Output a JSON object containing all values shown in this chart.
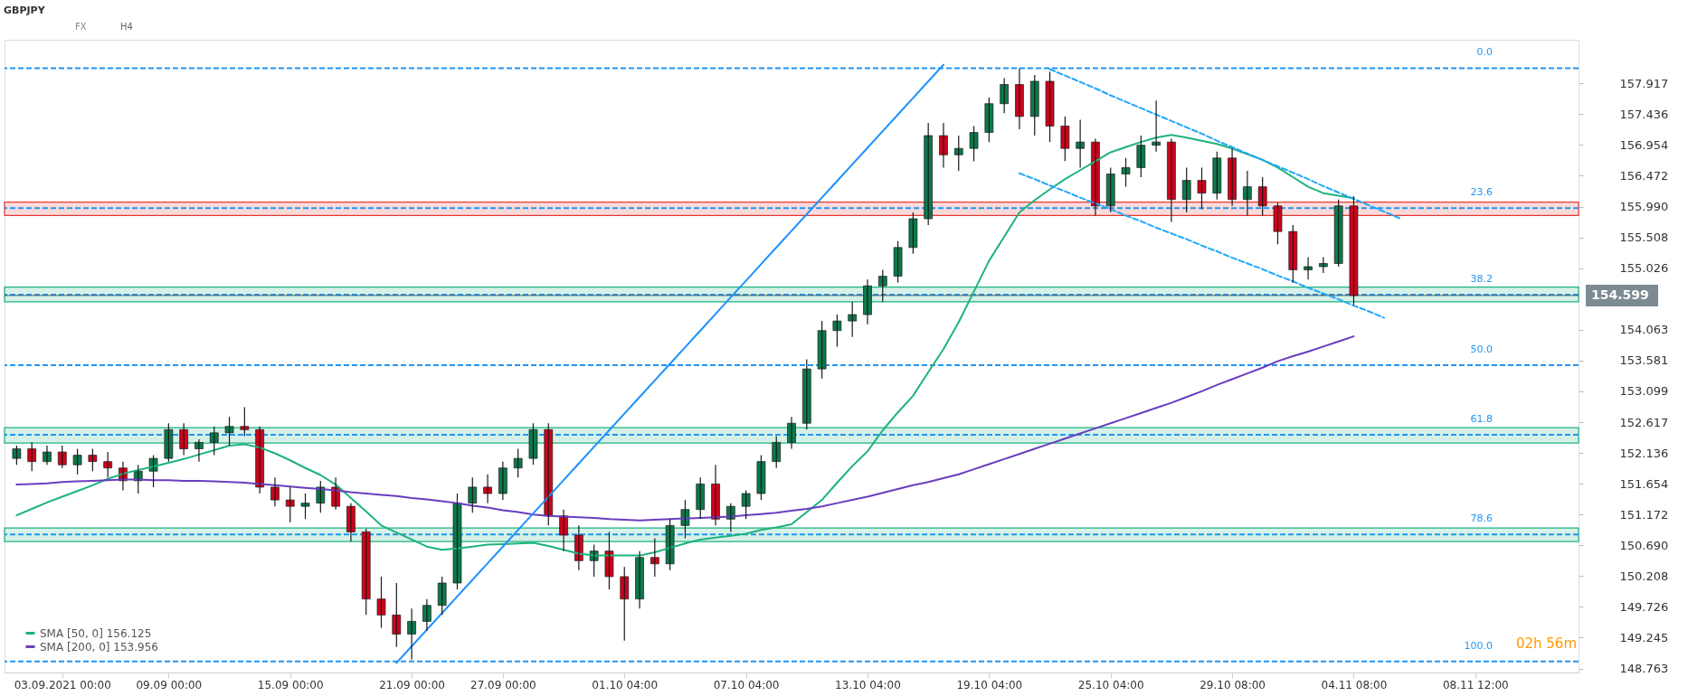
{
  "chart_data": {
    "type": "candlestick",
    "title": "GBPJPY",
    "annotations": [
      "FX",
      "H4",
      "02h 56m",
      {
        "text": "0.0",
        "y": 158.155
      },
      {
        "text": "23.6",
        "y": 155.965
      },
      {
        "text": "38.2",
        "y": 154.61
      },
      {
        "text": "50.0",
        "y": 153.51
      },
      {
        "text": "61.8",
        "y": 152.42
      },
      {
        "text": "78.6",
        "y": 150.86
      },
      {
        "text": "100.0",
        "y": 148.874
      }
    ],
    "categories": [
      null,
      null,
      null,
      "03.09.2021 00:00",
      null,
      null,
      null,
      null,
      null,
      null,
      "09.09 00:00",
      null,
      null,
      null,
      null,
      null,
      null,
      null,
      "15.09 00:00",
      null,
      null,
      null,
      null,
      null,
      null,
      null,
      "21.09 00:00",
      null,
      null,
      null,
      null,
      null,
      "27.09 00:00",
      null,
      null,
      null,
      null,
      null,
      null,
      null,
      "01.10 04:00",
      null,
      null,
      null,
      null,
      null,
      null,
      null,
      "07.10 04:00",
      null,
      null,
      null,
      null,
      null,
      null,
      null,
      "13.10 04:00",
      null,
      null,
      null,
      null,
      null,
      null,
      null,
      "19.10 04:00",
      null,
      null,
      null,
      null,
      null,
      null,
      null,
      "25.10 04:00",
      null,
      null,
      null,
      null,
      null,
      null,
      null,
      "29.10 08:00",
      null,
      null,
      null,
      null,
      null,
      null,
      null,
      "04.11 08:00",
      null,
      null,
      null,
      null,
      null,
      null,
      null,
      "08.11 12:00",
      null,
      null,
      null,
      null,
      null,
      null
    ],
    "ohlc": [
      [
        152.05,
        152.25,
        151.95,
        152.2
      ],
      [
        152.2,
        152.3,
        151.85,
        152.0
      ],
      [
        152.0,
        152.25,
        151.95,
        152.15
      ],
      [
        152.15,
        152.25,
        151.9,
        151.95
      ],
      [
        151.95,
        152.2,
        151.8,
        152.1
      ],
      [
        152.1,
        152.2,
        151.85,
        152.0
      ],
      [
        152.0,
        152.15,
        151.75,
        151.9
      ],
      [
        151.9,
        152.0,
        151.55,
        151.7
      ],
      [
        151.7,
        151.95,
        151.5,
        151.85
      ],
      [
        151.85,
        152.1,
        151.6,
        152.05
      ],
      [
        152.05,
        152.6,
        152.0,
        152.5
      ],
      [
        152.5,
        152.6,
        152.1,
        152.2
      ],
      [
        152.2,
        152.35,
        152.0,
        152.3
      ],
      [
        152.3,
        152.55,
        152.1,
        152.45
      ],
      [
        152.45,
        152.7,
        152.25,
        152.55
      ],
      [
        152.55,
        152.85,
        152.4,
        152.5
      ],
      [
        152.5,
        152.55,
        151.5,
        151.6
      ],
      [
        151.6,
        151.75,
        151.3,
        151.4
      ],
      [
        151.4,
        151.6,
        151.05,
        151.3
      ],
      [
        151.3,
        151.5,
        151.1,
        151.35
      ],
      [
        151.35,
        151.7,
        151.2,
        151.6
      ],
      [
        151.6,
        151.75,
        151.25,
        151.3
      ],
      [
        151.3,
        151.35,
        150.75,
        150.9
      ],
      [
        150.9,
        150.95,
        149.6,
        149.85
      ],
      [
        149.85,
        150.2,
        149.4,
        149.6
      ],
      [
        149.6,
        150.1,
        149.1,
        149.3
      ],
      [
        149.3,
        149.7,
        148.9,
        149.5
      ],
      [
        149.5,
        149.85,
        149.35,
        149.75
      ],
      [
        149.75,
        150.2,
        149.6,
        150.1
      ],
      [
        150.1,
        151.5,
        150.0,
        151.35
      ],
      [
        151.35,
        151.75,
        151.2,
        151.6
      ],
      [
        151.6,
        151.8,
        151.35,
        151.5
      ],
      [
        151.5,
        152.0,
        151.4,
        151.9
      ],
      [
        151.9,
        152.2,
        151.75,
        152.05
      ],
      [
        152.05,
        152.6,
        151.95,
        152.5
      ],
      [
        152.5,
        152.6,
        151.0,
        151.15
      ],
      [
        151.15,
        151.25,
        150.6,
        150.85
      ],
      [
        150.85,
        151.0,
        150.3,
        150.45
      ],
      [
        150.45,
        150.7,
        150.2,
        150.6
      ],
      [
        150.6,
        150.9,
        150.0,
        150.2
      ],
      [
        150.2,
        150.35,
        149.2,
        149.85
      ],
      [
        149.85,
        150.6,
        149.7,
        150.5
      ],
      [
        150.5,
        150.8,
        150.2,
        150.4
      ],
      [
        150.4,
        151.1,
        150.3,
        151.0
      ],
      [
        151.0,
        151.4,
        150.8,
        151.25
      ],
      [
        151.25,
        151.75,
        151.1,
        151.65
      ],
      [
        151.65,
        151.95,
        151.0,
        151.1
      ],
      [
        151.1,
        151.35,
        150.9,
        151.3
      ],
      [
        151.3,
        151.55,
        151.1,
        151.5
      ],
      [
        151.5,
        152.1,
        151.4,
        152.0
      ],
      [
        152.0,
        152.4,
        151.9,
        152.3
      ],
      [
        152.3,
        152.7,
        152.2,
        152.6
      ],
      [
        152.6,
        153.6,
        152.5,
        153.45
      ],
      [
        153.45,
        154.2,
        153.3,
        154.05
      ],
      [
        154.05,
        154.3,
        153.8,
        154.2
      ],
      [
        154.2,
        154.5,
        153.95,
        154.3
      ],
      [
        154.3,
        154.85,
        154.15,
        154.75
      ],
      [
        154.75,
        155.0,
        154.5,
        154.9
      ],
      [
        154.9,
        155.45,
        154.8,
        155.35
      ],
      [
        155.35,
        155.9,
        155.25,
        155.8
      ],
      [
        155.8,
        157.3,
        155.7,
        157.1
      ],
      [
        157.1,
        157.3,
        156.6,
        156.8
      ],
      [
        156.8,
        157.1,
        156.55,
        156.9
      ],
      [
        156.9,
        157.25,
        156.7,
        157.15
      ],
      [
        157.15,
        157.7,
        157.0,
        157.6
      ],
      [
        157.6,
        158.0,
        157.45,
        157.9
      ],
      [
        157.9,
        158.15,
        157.2,
        157.4
      ],
      [
        157.4,
        158.05,
        157.1,
        157.95
      ],
      [
        157.95,
        158.1,
        157.0,
        157.25
      ],
      [
        157.25,
        157.4,
        156.7,
        156.9
      ],
      [
        156.9,
        157.35,
        156.6,
        157.0
      ],
      [
        157.0,
        157.05,
        155.85,
        156.0
      ],
      [
        156.0,
        156.6,
        155.9,
        156.5
      ],
      [
        156.5,
        156.75,
        156.3,
        156.6
      ],
      [
        156.6,
        157.1,
        156.45,
        156.95
      ],
      [
        156.95,
        157.65,
        156.85,
        157.0
      ],
      [
        157.0,
        157.05,
        155.75,
        156.1
      ],
      [
        156.1,
        156.6,
        155.9,
        156.4
      ],
      [
        156.4,
        156.6,
        155.95,
        156.2
      ],
      [
        156.2,
        156.85,
        156.1,
        156.75
      ],
      [
        156.75,
        156.9,
        156.0,
        156.1
      ],
      [
        156.1,
        156.55,
        155.85,
        156.3
      ],
      [
        156.3,
        156.45,
        155.85,
        156.0
      ],
      [
        156.0,
        156.05,
        155.4,
        155.6
      ],
      [
        155.6,
        155.7,
        154.8,
        155.0
      ],
      [
        155.0,
        155.2,
        154.85,
        155.05
      ],
      [
        155.05,
        155.2,
        154.95,
        155.1
      ],
      [
        155.1,
        156.1,
        155.05,
        156.0
      ],
      [
        156.0,
        156.15,
        154.45,
        154.599
      ],
      null,
      null,
      null,
      null,
      null,
      null,
      null,
      null,
      null,
      null,
      null,
      null,
      null,
      null
    ],
    "series": [
      {
        "name": "SMA [50, 0] 156.125",
        "type": "line",
        "color": "#1db37c",
        "line_style": "solid",
        "values": [
          151.16,
          151.26,
          151.36,
          151.45,
          151.54,
          151.63,
          151.73,
          151.81,
          151.87,
          151.92,
          151.98,
          152.04,
          152.11,
          152.18,
          152.25,
          152.27,
          152.22,
          152.13,
          152.02,
          151.9,
          151.79,
          151.64,
          151.43,
          151.22,
          151.0,
          150.89,
          150.78,
          150.67,
          150.62,
          150.64,
          150.67,
          150.7,
          150.71,
          150.72,
          150.73,
          150.68,
          150.62,
          150.56,
          150.53,
          150.53,
          150.53,
          150.53,
          150.58,
          150.65,
          150.72,
          150.78,
          150.81,
          150.84,
          150.87,
          150.93,
          150.97,
          151.02,
          151.21,
          151.4,
          151.67,
          151.93,
          152.16,
          152.49,
          152.77,
          153.03,
          153.4,
          153.76,
          154.18,
          154.66,
          155.14,
          155.52,
          155.9,
          156.09,
          156.26,
          156.42,
          156.56,
          156.7,
          156.84,
          156.92,
          157.0,
          157.07,
          157.11,
          157.07,
          157.02,
          156.97,
          156.9,
          156.81,
          156.72,
          156.6,
          156.45,
          156.3,
          156.2,
          156.16,
          156.12,
          null,
          null,
          null,
          null,
          null,
          null,
          null,
          null,
          null,
          null,
          null,
          null,
          null,
          null
        ]
      },
      {
        "name": "SMA [200, 0] 153.956",
        "type": "line",
        "color": "#6a3dbf",
        "line_style": "solid",
        "values": [
          151.64,
          151.65,
          151.66,
          151.68,
          151.69,
          151.7,
          151.71,
          151.72,
          151.72,
          151.71,
          151.71,
          151.7,
          151.7,
          151.69,
          151.68,
          151.67,
          151.65,
          151.63,
          151.61,
          151.59,
          151.57,
          151.55,
          151.52,
          151.5,
          151.48,
          151.46,
          151.43,
          151.41,
          151.38,
          151.35,
          151.31,
          151.28,
          151.24,
          151.21,
          151.17,
          151.15,
          151.14,
          151.13,
          151.12,
          151.1,
          151.09,
          151.08,
          151.09,
          151.1,
          151.11,
          151.12,
          151.13,
          151.14,
          151.16,
          151.18,
          151.2,
          151.23,
          151.26,
          151.3,
          151.35,
          151.4,
          151.45,
          151.51,
          151.57,
          151.63,
          151.68,
          151.74,
          151.8,
          151.88,
          151.96,
          152.04,
          152.12,
          152.2,
          152.28,
          152.36,
          152.44,
          152.52,
          152.6,
          152.68,
          152.76,
          152.84,
          152.92,
          153.01,
          153.1,
          153.2,
          153.29,
          153.38,
          153.47,
          153.57,
          153.65,
          153.72,
          153.8,
          153.88,
          153.96,
          null,
          null,
          null,
          null,
          null,
          null,
          null,
          null,
          null,
          null,
          null,
          null,
          null,
          null
        ]
      },
      {
        "type": "line",
        "color": "#1e90ff",
        "line_style": "solid",
        "values": [
          null,
          null,
          null,
          null,
          null,
          null,
          null,
          null,
          null,
          null,
          null,
          null,
          null,
          null,
          null,
          null,
          null,
          null,
          null,
          null,
          null,
          null,
          null,
          null,
          null,
          148.85,
          149.11,
          149.37,
          149.63,
          149.89,
          150.15,
          150.41,
          150.67,
          150.93,
          151.19,
          151.45,
          151.71,
          151.97,
          152.23,
          152.49,
          152.75,
          153.01,
          153.27,
          153.53,
          153.79,
          154.05,
          154.31,
          154.57,
          154.83,
          155.09,
          155.35,
          155.61,
          155.87,
          156.13,
          156.39,
          156.65,
          156.91,
          157.17,
          157.43,
          157.69,
          157.95,
          158.21,
          null,
          null,
          null,
          null,
          null,
          null,
          null,
          null,
          null,
          null,
          null,
          null,
          null,
          null,
          null,
          null,
          null,
          null,
          null,
          null,
          null,
          null,
          null,
          null,
          null,
          null,
          null,
          null,
          null,
          null,
          null,
          null,
          null,
          null,
          null,
          null,
          null,
          null,
          null,
          null,
          null
        ]
      },
      {
        "type": "line",
        "color": "#1ea7fd",
        "line_style": "dashed",
        "values": [
          null,
          null,
          null,
          null,
          null,
          null,
          null,
          null,
          null,
          null,
          null,
          null,
          null,
          null,
          null,
          null,
          null,
          null,
          null,
          null,
          null,
          null,
          null,
          null,
          null,
          null,
          null,
          null,
          null,
          null,
          null,
          null,
          null,
          null,
          null,
          null,
          null,
          null,
          null,
          null,
          null,
          null,
          null,
          null,
          null,
          null,
          null,
          null,
          null,
          null,
          null,
          null,
          null,
          null,
          null,
          null,
          null,
          null,
          null,
          null,
          null,
          null,
          null,
          null,
          null,
          null,
          null,
          null,
          158.14,
          158.04,
          157.94,
          157.84,
          157.73,
          157.63,
          157.53,
          157.43,
          157.33,
          157.23,
          157.13,
          157.02,
          156.92,
          156.82,
          156.72,
          156.62,
          156.52,
          156.42,
          156.31,
          156.21,
          156.11,
          156.01,
          155.91,
          155.81,
          null,
          null,
          null,
          null,
          null,
          null,
          null,
          null,
          null,
          null,
          null
        ]
      },
      {
        "type": "line",
        "color": "#1ea7fd",
        "line_style": "dashed",
        "values": [
          null,
          null,
          null,
          null,
          null,
          null,
          null,
          null,
          null,
          null,
          null,
          null,
          null,
          null,
          null,
          null,
          null,
          null,
          null,
          null,
          null,
          null,
          null,
          null,
          null,
          null,
          null,
          null,
          null,
          null,
          null,
          null,
          null,
          null,
          null,
          null,
          null,
          null,
          null,
          null,
          null,
          null,
          null,
          null,
          null,
          null,
          null,
          null,
          null,
          null,
          null,
          null,
          null,
          null,
          null,
          null,
          null,
          null,
          null,
          null,
          null,
          null,
          null,
          null,
          null,
          null,
          156.51,
          156.42,
          156.32,
          156.23,
          156.13,
          156.04,
          155.95,
          155.85,
          155.76,
          155.66,
          155.57,
          155.48,
          155.38,
          155.29,
          155.19,
          155.1,
          155.01,
          154.91,
          154.82,
          154.72,
          154.63,
          154.54,
          154.44,
          154.35,
          154.25,
          null,
          null,
          null,
          null,
          null,
          null,
          null,
          null,
          null,
          null,
          null,
          null
        ]
      }
    ],
    "bands": [
      {
        "axis": "y",
        "from": 154.5,
        "to": 154.73,
        "color": "#1db37c"
      },
      {
        "axis": "y",
        "from": 155.85,
        "to": 156.06,
        "color": "#e53935"
      },
      {
        "axis": "y",
        "from": 152.29,
        "to": 152.53,
        "color": "#1db37c"
      },
      {
        "axis": "y",
        "from": 150.75,
        "to": 150.96,
        "color": "#1db37c"
      }
    ],
    "ref_lines": [
      {
        "axis": "y",
        "value": 158.155,
        "color": "#2196f3",
        "line_style": "dashed"
      },
      {
        "axis": "y",
        "value": 155.965,
        "color": "#2196f3",
        "line_style": "dashed"
      },
      {
        "axis": "y",
        "value": 154.61,
        "color": "#2196f3",
        "line_style": "dashed"
      },
      {
        "axis": "y",
        "value": 153.51,
        "color": "#2196f3",
        "line_style": "dashed"
      },
      {
        "axis": "y",
        "value": 152.42,
        "color": "#2196f3",
        "line_style": "dashed"
      },
      {
        "axis": "y",
        "value": 150.86,
        "color": "#2196f3",
        "line_style": "dashed"
      },
      {
        "axis": "y",
        "value": 148.874,
        "color": "#2196f3",
        "line_style": "dashed"
      },
      {
        "axis": "y",
        "value": 154.599,
        "label": "154.599",
        "color": "#455a64",
        "line_style": "solid"
      }
    ],
    "ylim": [
      148.7,
      158.6
    ],
    "yticks": [
      148.763,
      149.245,
      149.726,
      150.208,
      {
        "value": 150.69,
        "label": "150.690"
      },
      151.172,
      151.654,
      152.136,
      152.617,
      153.099,
      153.581,
      154.063,
      155.026,
      155.508,
      {
        "value": 155.99,
        "label": "155.990"
      },
      156.472,
      156.954,
      157.436,
      157.917
    ],
    "legend": "bottom left",
    "marker": "none",
    "grid": false
  }
}
